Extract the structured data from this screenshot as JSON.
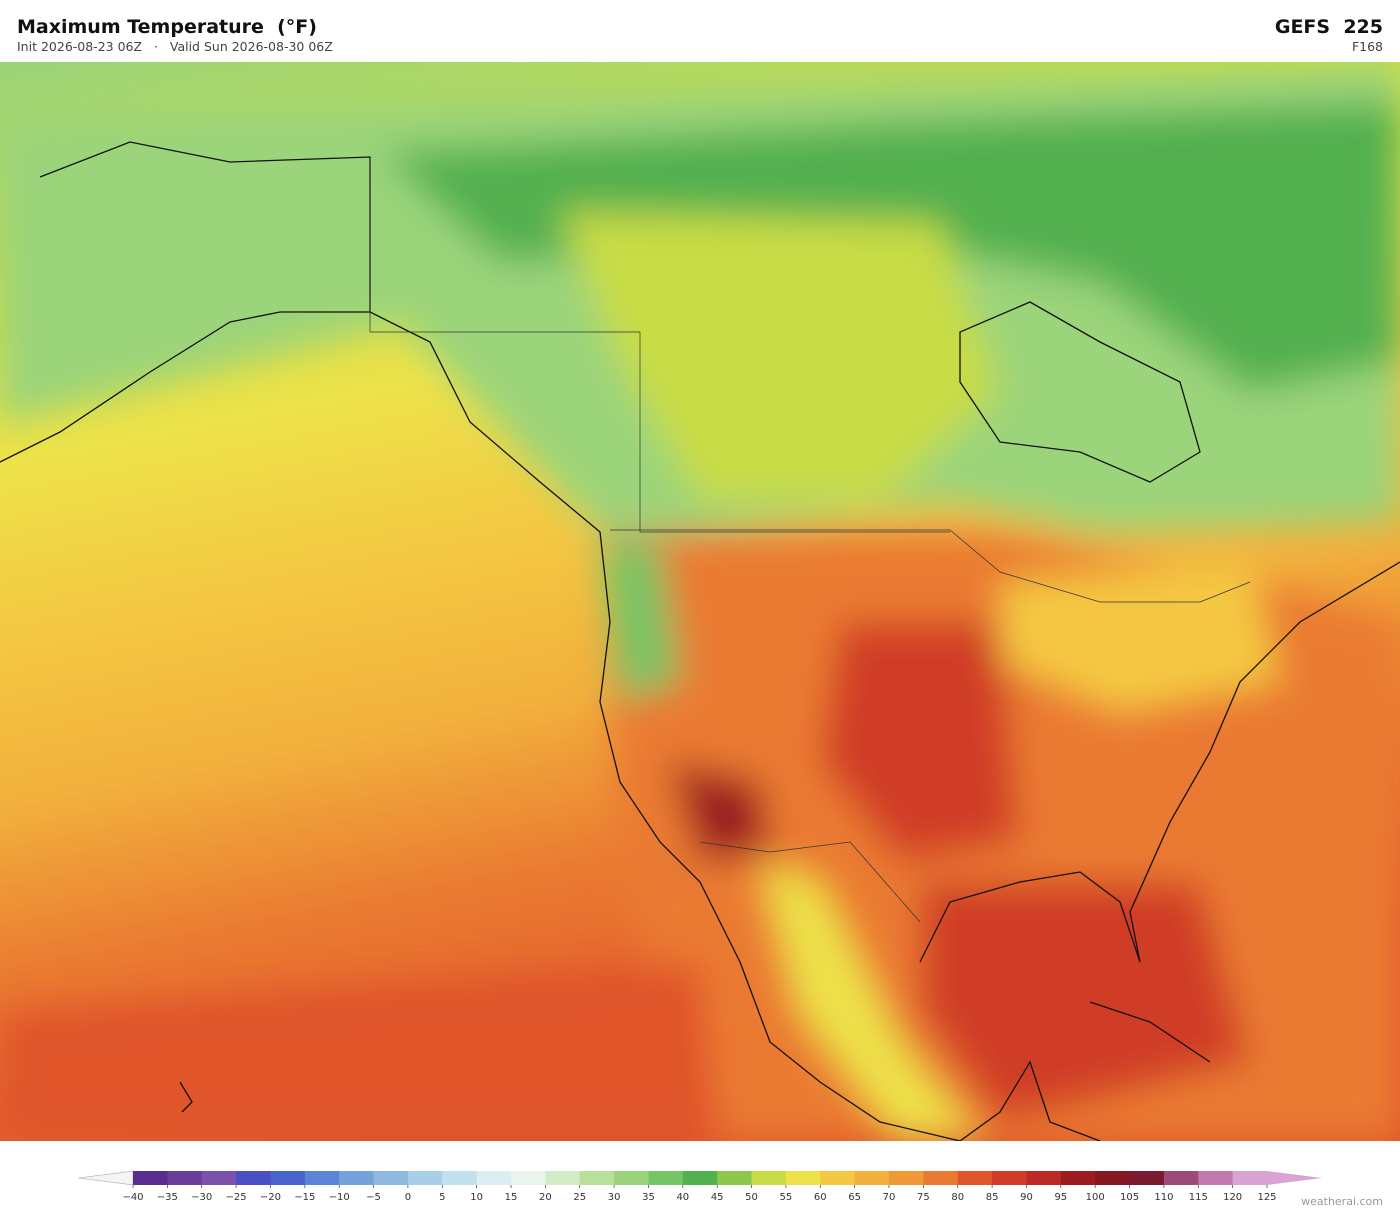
{
  "header": {
    "title": "Maximum Temperature  (°F)",
    "init": "Init 2026-08-23 06Z",
    "separator": "·",
    "valid": "Valid Sun 2026-08-30 06Z",
    "model": "GEFS  225",
    "forecast_hour": "F168"
  },
  "colorbar": {
    "ticks": [
      {
        "value": -40,
        "label": "−40"
      },
      {
        "value": -35,
        "label": "−35"
      },
      {
        "value": -30,
        "label": "−30"
      },
      {
        "value": -25,
        "label": "−25"
      },
      {
        "value": -20,
        "label": "−20"
      },
      {
        "value": -15,
        "label": "−15"
      },
      {
        "value": -10,
        "label": "−10"
      },
      {
        "value": -5,
        "label": "−5"
      },
      0,
      5,
      10,
      15,
      20,
      25,
      30,
      35,
      40,
      45,
      50,
      55,
      60,
      65,
      70,
      75,
      80,
      85,
      90,
      95,
      100,
      105,
      110,
      115,
      120,
      125
    ],
    "colors": [
      "#5b2c8f",
      "#6a3d9a",
      "#7b52ab",
      "#4b4fc4",
      "#4a62cc",
      "#5a85d6",
      "#74a3db",
      "#8fb9e0",
      "#a9cfe8",
      "#c2e0ee",
      "#daeef3",
      "#e8f5ec",
      "#d3ecc7",
      "#b8e09a",
      "#9bd47a",
      "#76c565",
      "#52b04f",
      "#8cc84b",
      "#c8dc45",
      "#ede24a",
      "#f4c842",
      "#f2b03c",
      "#ef9a36",
      "#ea7a31",
      "#e0552b",
      "#d03c27",
      "#bb2a24",
      "#9c1c22",
      "#861620",
      "#7a1a2e",
      "#9c4a78",
      "#c07ab0",
      "#d9a4d4"
    ],
    "under_color": "#f4f4f4",
    "over_color": "#d9a4d4"
  },
  "footer": {
    "credit": "weatherai.com"
  }
}
